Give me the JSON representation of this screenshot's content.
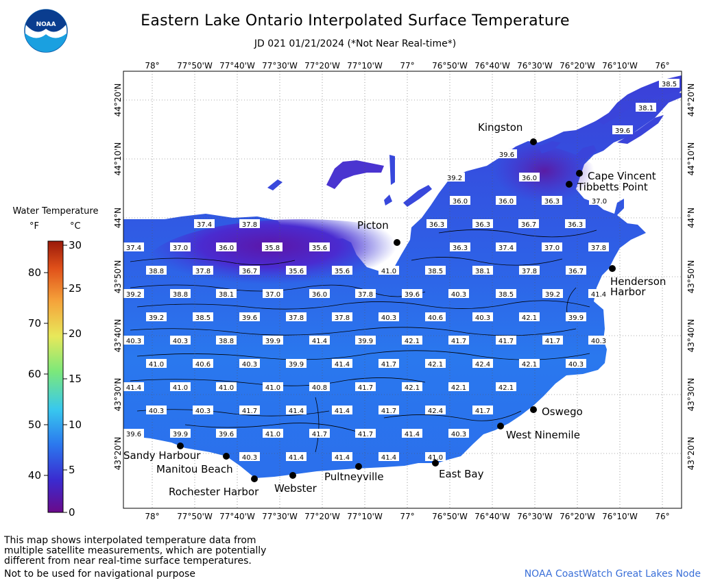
{
  "header": {
    "title": "Eastern Lake Ontario Interpolated Surface Temperature",
    "subtitle": "JD 021 01/21/2024 (*Not Near Real-time*)"
  },
  "logo": {
    "text": "NOAA"
  },
  "legend": {
    "title": "Water Temperature",
    "f_label": "°F",
    "c_label": "°C",
    "f_ticks": [
      "80",
      "70",
      "60",
      "50",
      "40"
    ],
    "c_ticks": [
      "30",
      "25",
      "20",
      "15",
      "10",
      "5",
      "0"
    ],
    "colors": [
      "#6a0a8a",
      "#3a2bd0",
      "#2b78ee",
      "#38c8ee",
      "#7ce87a",
      "#e8e85a",
      "#f5a23a",
      "#e0501a",
      "#9a1a0a"
    ]
  },
  "axes": {
    "lon_labels": [
      "78°",
      "77°50'W",
      "77°40'W",
      "77°30'W",
      "77°20'W",
      "77°10'W",
      "77°",
      "76°50'W",
      "76°40'W",
      "76°30'W",
      "76°20'W",
      "76°10'W",
      "76°"
    ],
    "lat_labels": [
      "44°20'N",
      "44°10'N",
      "44°N",
      "43°50'N",
      "43°40'N",
      "43°30'N",
      "43°20'N"
    ]
  },
  "places": [
    {
      "name": "Kingston"
    },
    {
      "name": "Cape Vincent"
    },
    {
      "name": "Tibbetts Point"
    },
    {
      "name": "Picton"
    },
    {
      "name": "Henderson"
    },
    {
      "name": "Harbor"
    },
    {
      "name": "Oswego"
    },
    {
      "name": "West Ninemile"
    },
    {
      "name": "East Bay"
    },
    {
      "name": "Pultneyville"
    },
    {
      "name": "Webster"
    },
    {
      "name": "Rochester Harbor"
    },
    {
      "name": "Manitou Beach"
    },
    {
      "name": "Sandy Harbour"
    }
  ],
  "temps": [
    [
      "38.5",
      "38.1",
      "39.6",
      "39.6",
      "36.0",
      "39.2",
      "37.0"
    ],
    [
      "36.0",
      "36.0",
      "36.3",
      "36.3",
      "36.3",
      "36.7",
      "36.3"
    ],
    [
      "37.4",
      "37.8",
      "37.4",
      "37.0",
      "36.0",
      "35.8",
      "35.6",
      "36.3",
      "37.4",
      "37.0",
      "37.8"
    ],
    [
      "38.8",
      "37.8",
      "36.7",
      "35.6",
      "35.6",
      "41.0",
      "38.5",
      "38.1",
      "37.8",
      "36.7"
    ],
    [
      "39.2",
      "38.8",
      "38.1",
      "37.0",
      "36.0",
      "37.8",
      "39.6",
      "40.3",
      "38.5",
      "39.2",
      "41.4"
    ],
    [
      "39.2",
      "38.5",
      "39.6",
      "37.8",
      "37.8",
      "40.3",
      "40.6",
      "40.3",
      "42.1",
      "39.9"
    ],
    [
      "40.3",
      "40.3",
      "38.8",
      "39.9",
      "41.4",
      "39.9",
      "42.1",
      "41.7",
      "41.7",
      "41.7",
      "40.3"
    ],
    [
      "41.0",
      "40.6",
      "40.3",
      "39.9",
      "41.4",
      "41.7",
      "42.1",
      "42.4",
      "42.1",
      "40.3"
    ],
    [
      "41.4",
      "41.0",
      "41.0",
      "41.0",
      "40.8",
      "41.7",
      "42.1",
      "42.1",
      "42.1"
    ],
    [
      "40.3",
      "40.3",
      "41.7",
      "41.4",
      "41.4",
      "41.7",
      "42.4",
      "41.7"
    ],
    [
      "39.6",
      "39.9",
      "39.6",
      "41.0",
      "41.7",
      "41.7",
      "41.4",
      "40.3"
    ],
    [
      "40.3",
      "41.4",
      "41.4",
      "41.4",
      "41.0"
    ]
  ],
  "footer": {
    "note_lines": [
      "This map shows interpolated temperature data from",
      "multiple satellite measurements, which are potentially",
      "different from near real-time surface temperatures."
    ],
    "nav": "Not to be used for navigational purpose",
    "credit": "NOAA CoastWatch Great Lakes Node"
  }
}
